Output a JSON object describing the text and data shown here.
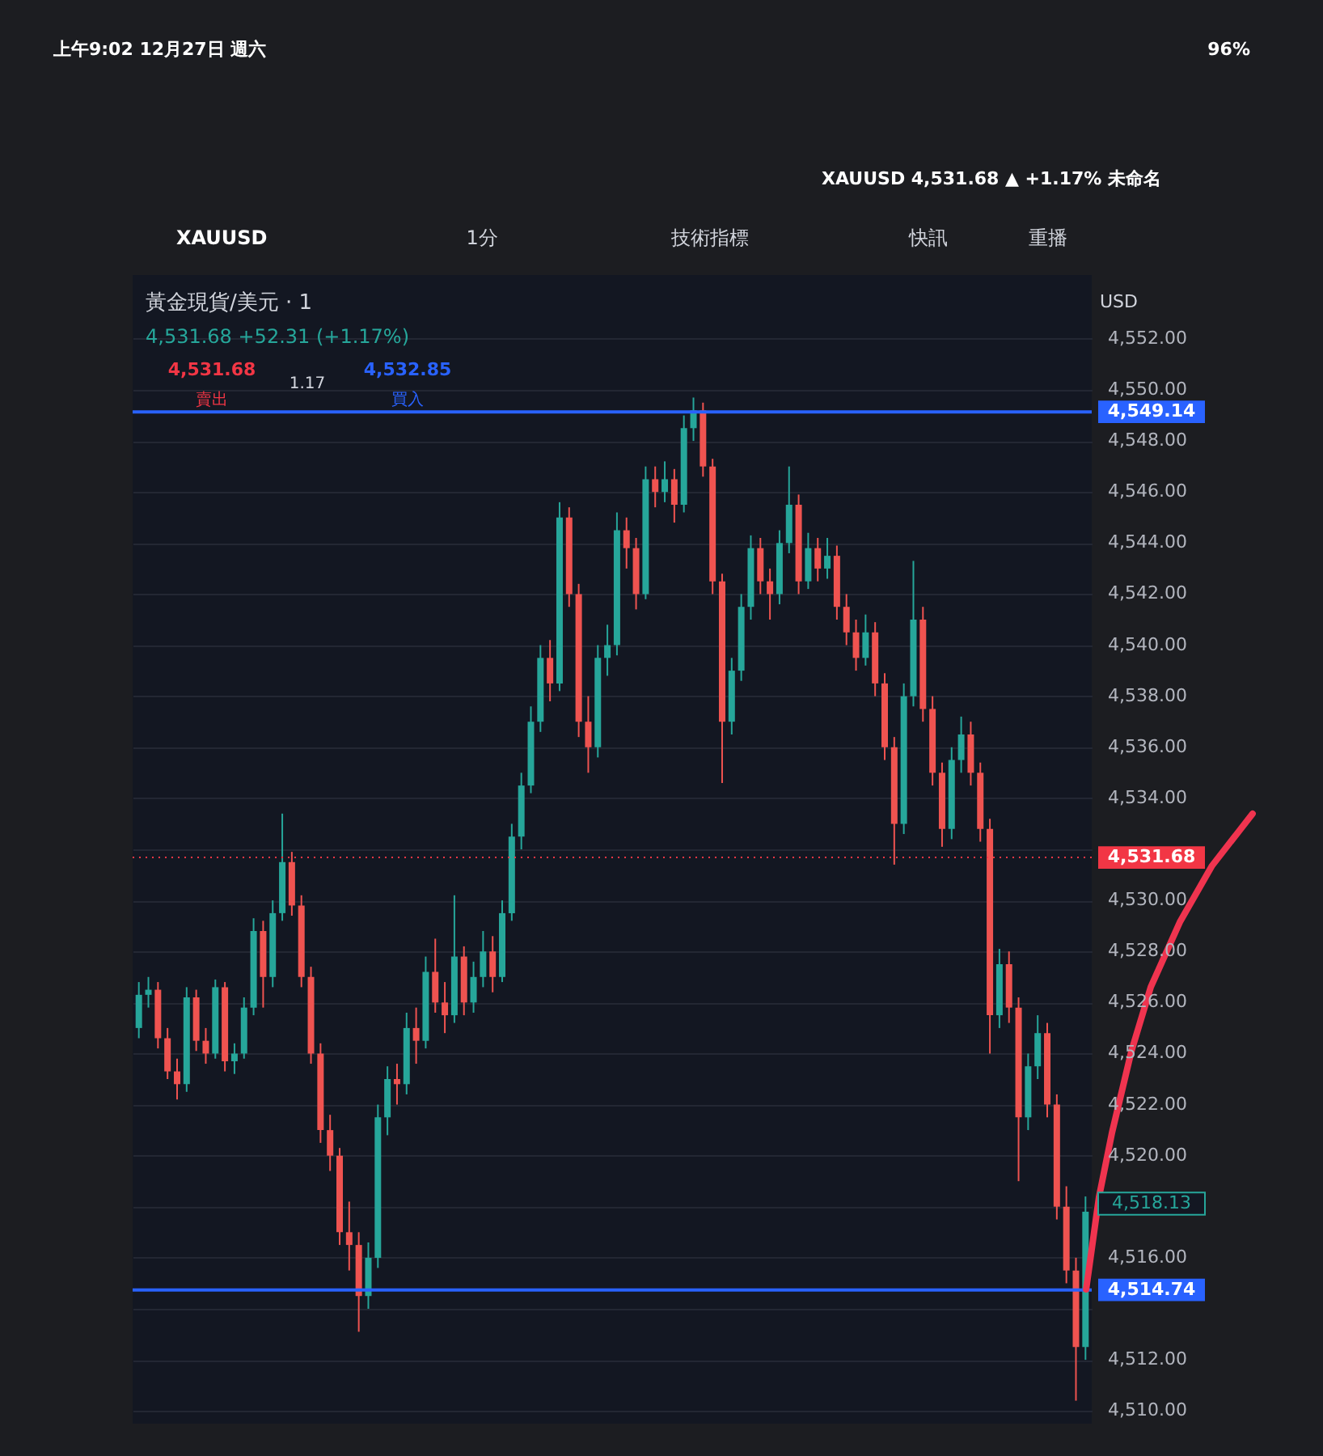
{
  "chart_data": {
    "type": "candlestick",
    "title": "黃金現貨/美元 · 1",
    "subtitle": "4,531.68 +52.31 (+1.17%)",
    "categories": [
      null,
      null,
      null,
      null,
      null,
      null,
      null,
      null,
      null,
      null,
      null,
      null,
      null,
      null,
      null,
      null,
      null,
      null,
      null,
      null,
      null,
      null,
      null,
      null,
      null,
      null,
      null,
      null,
      null,
      null,
      null,
      null,
      null,
      null,
      null,
      null,
      null,
      null,
      null,
      null,
      null,
      null,
      null,
      null,
      null,
      null,
      null,
      null,
      null,
      null,
      null,
      null,
      null,
      null,
      null,
      null,
      null,
      null,
      null,
      null,
      null,
      null,
      null,
      null,
      null,
      null,
      null,
      null,
      null,
      null,
      null,
      null,
      null,
      null,
      null,
      null,
      null,
      null,
      null,
      null,
      null,
      null,
      null,
      null,
      null,
      null,
      null,
      null,
      null,
      null,
      null,
      null,
      null,
      null,
      null,
      null,
      null,
      null,
      null,
      null
    ],
    "ohlc": [
      [
        4525.0,
        4526.8,
        4524.6,
        4526.3
      ],
      [
        4526.3,
        4527.0,
        4525.8,
        4526.5
      ],
      [
        4526.5,
        4526.8,
        4524.2,
        4524.6
      ],
      [
        4524.6,
        4525.0,
        4523.0,
        4523.3
      ],
      [
        4523.3,
        4523.8,
        4522.2,
        4522.8
      ],
      [
        4522.8,
        4526.6,
        4522.5,
        4526.2
      ],
      [
        4526.2,
        4526.5,
        4524.1,
        4524.5
      ],
      [
        4524.5,
        4525.0,
        4523.6,
        4524.0
      ],
      [
        4524.0,
        4526.9,
        4523.8,
        4526.6
      ],
      [
        4526.6,
        4526.8,
        4523.3,
        4523.7
      ],
      [
        4523.7,
        4524.4,
        4523.2,
        4524.0
      ],
      [
        4524.0,
        4526.2,
        4523.8,
        4525.8
      ],
      [
        4525.8,
        4529.3,
        4525.5,
        4528.8
      ],
      [
        4528.8,
        4529.2,
        4525.8,
        4527.0
      ],
      [
        4527.0,
        4530.0,
        4526.6,
        4529.5
      ],
      [
        4529.5,
        4533.4,
        4529.2,
        4531.5
      ],
      [
        4531.5,
        4531.9,
        4529.4,
        4529.8
      ],
      [
        4529.8,
        4530.2,
        4526.6,
        4527.0
      ],
      [
        4527.0,
        4527.4,
        4523.6,
        4524.0
      ],
      [
        4524.0,
        4524.4,
        4520.5,
        4521.0
      ],
      [
        4521.0,
        4521.6,
        4519.4,
        4520.0
      ],
      [
        4520.0,
        4520.3,
        4516.5,
        4517.0
      ],
      [
        4517.0,
        4518.2,
        4515.5,
        4516.5
      ],
      [
        4516.5,
        4517.0,
        4513.1,
        4514.5
      ],
      [
        4514.5,
        4516.6,
        4514.0,
        4516.0
      ],
      [
        4516.0,
        4522.0,
        4515.6,
        4521.5
      ],
      [
        4521.5,
        4523.5,
        4520.8,
        4523.0
      ],
      [
        4523.0,
        4523.6,
        4522.0,
        4522.8
      ],
      [
        4522.8,
        4525.6,
        4522.4,
        4525.0
      ],
      [
        4525.0,
        4525.8,
        4523.6,
        4524.5
      ],
      [
        4524.5,
        4527.8,
        4524.2,
        4527.2
      ],
      [
        4527.2,
        4528.5,
        4525.6,
        4526.0
      ],
      [
        4526.0,
        4526.8,
        4524.8,
        4525.5
      ],
      [
        4525.5,
        4530.2,
        4525.2,
        4527.8
      ],
      [
        4527.8,
        4528.2,
        4525.5,
        4526.0
      ],
      [
        4526.0,
        4527.6,
        4525.6,
        4527.0
      ],
      [
        4527.0,
        4528.8,
        4526.6,
        4528.0
      ],
      [
        4528.0,
        4528.6,
        4526.4,
        4527.0
      ],
      [
        4527.0,
        4530.0,
        4526.8,
        4529.5
      ],
      [
        4529.5,
        4533.0,
        4529.2,
        4532.5
      ],
      [
        4532.5,
        4535.0,
        4532.0,
        4534.5
      ],
      [
        4534.5,
        4537.6,
        4534.2,
        4537.0
      ],
      [
        4537.0,
        4540.0,
        4536.6,
        4539.5
      ],
      [
        4539.5,
        4540.2,
        4537.8,
        4538.5
      ],
      [
        4538.5,
        4545.6,
        4538.2,
        4545.0
      ],
      [
        4545.0,
        4545.4,
        4541.5,
        4542.0
      ],
      [
        4542.0,
        4542.4,
        4536.4,
        4537.0
      ],
      [
        4537.0,
        4538.0,
        4535.0,
        4536.0
      ],
      [
        4536.0,
        4540.0,
        4535.6,
        4539.5
      ],
      [
        4539.5,
        4540.8,
        4538.8,
        4540.0
      ],
      [
        4540.0,
        4545.2,
        4539.6,
        4544.5
      ],
      [
        4544.5,
        4545.0,
        4543.0,
        4543.8
      ],
      [
        4543.8,
        4544.2,
        4541.4,
        4542.0
      ],
      [
        4542.0,
        4547.0,
        4541.8,
        4546.5
      ],
      [
        4546.5,
        4547.0,
        4545.4,
        4546.0
      ],
      [
        4546.0,
        4547.2,
        4545.6,
        4546.5
      ],
      [
        4546.5,
        4546.9,
        4544.8,
        4545.5
      ],
      [
        4545.5,
        4549.0,
        4545.2,
        4548.5
      ],
      [
        4548.5,
        4549.7,
        4548.0,
        4549.2
      ],
      [
        4549.2,
        4549.5,
        4546.6,
        4547.0
      ],
      [
        4547.0,
        4547.3,
        4542.0,
        4542.5
      ],
      [
        4542.5,
        4542.8,
        4534.6,
        4537.0
      ],
      [
        4537.0,
        4539.5,
        4536.5,
        4539.0
      ],
      [
        4539.0,
        4542.0,
        4538.6,
        4541.5
      ],
      [
        4541.5,
        4544.3,
        4541.0,
        4543.8
      ],
      [
        4543.8,
        4544.2,
        4542.0,
        4542.5
      ],
      [
        4542.5,
        4543.0,
        4541.0,
        4542.0
      ],
      [
        4542.0,
        4544.5,
        4541.6,
        4544.0
      ],
      [
        4544.0,
        4547.0,
        4543.6,
        4545.5
      ],
      [
        4545.5,
        4545.9,
        4542.0,
        4542.5
      ],
      [
        4542.5,
        4544.4,
        4542.2,
        4543.8
      ],
      [
        4543.8,
        4544.2,
        4542.5,
        4543.0
      ],
      [
        4543.0,
        4544.2,
        4542.6,
        4543.5
      ],
      [
        4543.5,
        4543.9,
        4541.0,
        4541.5
      ],
      [
        4541.5,
        4542.0,
        4540.0,
        4540.5
      ],
      [
        4540.5,
        4541.0,
        4539.0,
        4539.5
      ],
      [
        4539.5,
        4541.2,
        4539.2,
        4540.5
      ],
      [
        4540.5,
        4540.9,
        4538.0,
        4538.5
      ],
      [
        4538.5,
        4538.9,
        4535.5,
        4536.0
      ],
      [
        4536.0,
        4536.4,
        4531.4,
        4533.0
      ],
      [
        4533.0,
        4538.5,
        4532.6,
        4538.0
      ],
      [
        4538.0,
        4543.3,
        4537.6,
        4541.0
      ],
      [
        4541.0,
        4541.5,
        4537.0,
        4537.5
      ],
      [
        4537.5,
        4538.0,
        4534.5,
        4535.0
      ],
      [
        4535.0,
        4535.4,
        4532.1,
        4532.8
      ],
      [
        4532.8,
        4536.0,
        4532.4,
        4535.5
      ],
      [
        4535.5,
        4537.2,
        4535.0,
        4536.5
      ],
      [
        4536.5,
        4537.0,
        4534.5,
        4535.0
      ],
      [
        4535.0,
        4535.4,
        4532.3,
        4532.8
      ],
      [
        4532.8,
        4533.2,
        4524.0,
        4525.5
      ],
      [
        4525.5,
        4528.1,
        4525.0,
        4527.5
      ],
      [
        4527.5,
        4528.0,
        4525.2,
        4525.8
      ],
      [
        4525.8,
        4526.2,
        4519.0,
        4521.5
      ],
      [
        4521.5,
        4524.0,
        4521.0,
        4523.5
      ],
      [
        4523.5,
        4525.5,
        4523.0,
        4524.8
      ],
      [
        4524.8,
        4525.2,
        4521.5,
        4522.0
      ],
      [
        4522.0,
        4522.4,
        4517.5,
        4518.0
      ],
      [
        4518.0,
        4518.8,
        4515.0,
        4515.5
      ],
      [
        4515.5,
        4516.0,
        4510.4,
        4512.5
      ],
      [
        4512.5,
        4518.4,
        4512.0,
        4517.8
      ]
    ],
    "colors": [
      "#26a69a",
      "#26a69a",
      "#ef5350",
      "#ef5350",
      "#ef5350",
      "#26a69a",
      "#ef5350",
      "#ef5350",
      "#26a69a",
      "#ef5350",
      "#26a69a",
      "#26a69a",
      "#26a69a",
      "#ef5350",
      "#26a69a",
      "#26a69a",
      "#ef5350",
      "#ef5350",
      "#ef5350",
      "#ef5350",
      "#ef5350",
      "#ef5350",
      "#ef5350",
      "#ef5350",
      "#26a69a",
      "#26a69a",
      "#26a69a",
      "#ef5350",
      "#26a69a",
      "#ef5350",
      "#26a69a",
      "#ef5350",
      "#ef5350",
      "#26a69a",
      "#ef5350",
      "#26a69a",
      "#26a69a",
      "#ef5350",
      "#26a69a",
      "#26a69a",
      "#26a69a",
      "#26a69a",
      "#26a69a",
      "#ef5350",
      "#26a69a",
      "#ef5350",
      "#ef5350",
      "#ef5350",
      "#26a69a",
      "#26a69a",
      "#26a69a",
      "#ef5350",
      "#ef5350",
      "#26a69a",
      "#ef5350",
      "#26a69a",
      "#ef5350",
      "#26a69a",
      "#26a69a",
      "#ef5350",
      "#ef5350",
      "#ef5350",
      "#26a69a",
      "#26a69a",
      "#26a69a",
      "#ef5350",
      "#ef5350",
      "#26a69a",
      "#26a69a",
      "#ef5350",
      "#26a69a",
      "#ef5350",
      "#26a69a",
      "#ef5350",
      "#ef5350",
      "#ef5350",
      "#26a69a",
      "#ef5350",
      "#ef5350",
      "#ef5350",
      "#26a69a",
      "#26a69a",
      "#ef5350",
      "#ef5350",
      "#ef5350",
      "#26a69a",
      "#26a69a",
      "#ef5350",
      "#ef5350",
      "#ef5350",
      "#26a69a",
      "#ef5350",
      "#ef5350",
      "#26a69a",
      "#26a69a",
      "#ef5350",
      "#ef5350",
      "#ef5350",
      "#ef5350",
      "#26a69a"
    ],
    "ylim": [
      4509.5,
      4554.5
    ],
    "yticks": [
      {
        "value": 4510,
        "label": "4,510.00"
      },
      {
        "value": 4512,
        "label": "4,512.00"
      },
      {
        "value": 4514,
        "label": null
      },
      {
        "value": 4516,
        "label": "4,516.00"
      },
      {
        "value": 4518,
        "label": null
      },
      {
        "value": 4520,
        "label": "4,520.00"
      },
      {
        "value": 4522,
        "label": "4,522.00"
      },
      {
        "value": 4524,
        "label": "4,524.00"
      },
      {
        "value": 4526,
        "label": "4,526.00"
      },
      {
        "value": 4528,
        "label": "4,528.00"
      },
      {
        "value": 4530,
        "label": "4,530.00"
      },
      {
        "value": 4532,
        "label": null
      },
      {
        "value": 4534,
        "label": "4,534.00"
      },
      {
        "value": 4536,
        "label": "4,536.00"
      },
      {
        "value": 4538,
        "label": "4,538.00"
      },
      {
        "value": 4540,
        "label": "4,540.00"
      },
      {
        "value": 4542,
        "label": "4,542.00"
      },
      {
        "value": 4544,
        "label": "4,544.00"
      },
      {
        "value": 4546,
        "label": "4,546.00"
      },
      {
        "value": 4548,
        "label": "4,548.00"
      },
      {
        "value": 4550,
        "label": "4,550.00"
      },
      {
        "value": 4552,
        "label": "4,552.00"
      }
    ],
    "grid": "y",
    "tick_labels": "y",
    "ref_lines": [
      {
        "axis": "y",
        "value": 4549.14,
        "label": "4,549.14",
        "color": "#2962ff",
        "line_style": "solid"
      },
      {
        "axis": "y",
        "value": 4531.68,
        "label": "4,531.68",
        "color": "#f23645",
        "line_style": "dotted"
      },
      {
        "axis": "y",
        "value": 4514.74,
        "label": "4,514.74",
        "color": "#2962ff",
        "line_style": "solid"
      }
    ],
    "annotations": [
      "上午9:02  12月27日 週六",
      "96%",
      "XAUUSD 4,531.68 ▲ +1.17% 未命名",
      "XAUUSD",
      "1分",
      "技術指標",
      "快訊",
      "重播",
      "USD",
      "4,531.68",
      "賣出",
      "1.17",
      "4,532.85",
      "買入",
      "4,518.13"
    ]
  }
}
